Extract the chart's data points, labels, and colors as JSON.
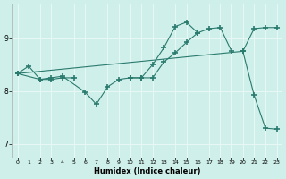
{
  "xlabel": "Humidex (Indice chaleur)",
  "bg_color": "#cff0ea",
  "line_color": "#2a7a6e",
  "grid_color": "#e8f8f5",
  "xlim": [
    -0.5,
    23.5
  ],
  "ylim": [
    6.75,
    9.65
  ],
  "yticks": [
    7,
    8,
    9
  ],
  "xticks": [
    0,
    1,
    2,
    3,
    4,
    5,
    6,
    7,
    8,
    9,
    10,
    11,
    12,
    13,
    14,
    15,
    16,
    17,
    18,
    19,
    20,
    21,
    22,
    23
  ],
  "line1_x": [
    0,
    1,
    2,
    3,
    4,
    5,
    10,
    11,
    12,
    13,
    14,
    15,
    16,
    17,
    18,
    19,
    20,
    21,
    22,
    23
  ],
  "line1_y": [
    8.33,
    8.47,
    8.22,
    8.22,
    8.25,
    8.25,
    8.25,
    8.25,
    8.25,
    8.55,
    8.72,
    8.92,
    9.1,
    9.18,
    9.2,
    8.75,
    8.75,
    9.18,
    9.2,
    9.2
  ],
  "line2_x": [
    0,
    2,
    3,
    4,
    6,
    7,
    8,
    9,
    10,
    11,
    12,
    13,
    14,
    15,
    16
  ],
  "line2_y": [
    8.33,
    8.22,
    8.25,
    8.28,
    7.98,
    7.75,
    8.08,
    8.22,
    8.25,
    8.25,
    8.5,
    8.82,
    9.22,
    9.3,
    9.1
  ],
  "line3_x": [
    0,
    20,
    21,
    22,
    23
  ],
  "line3_y": [
    8.33,
    8.75,
    7.92,
    7.3,
    7.28
  ]
}
